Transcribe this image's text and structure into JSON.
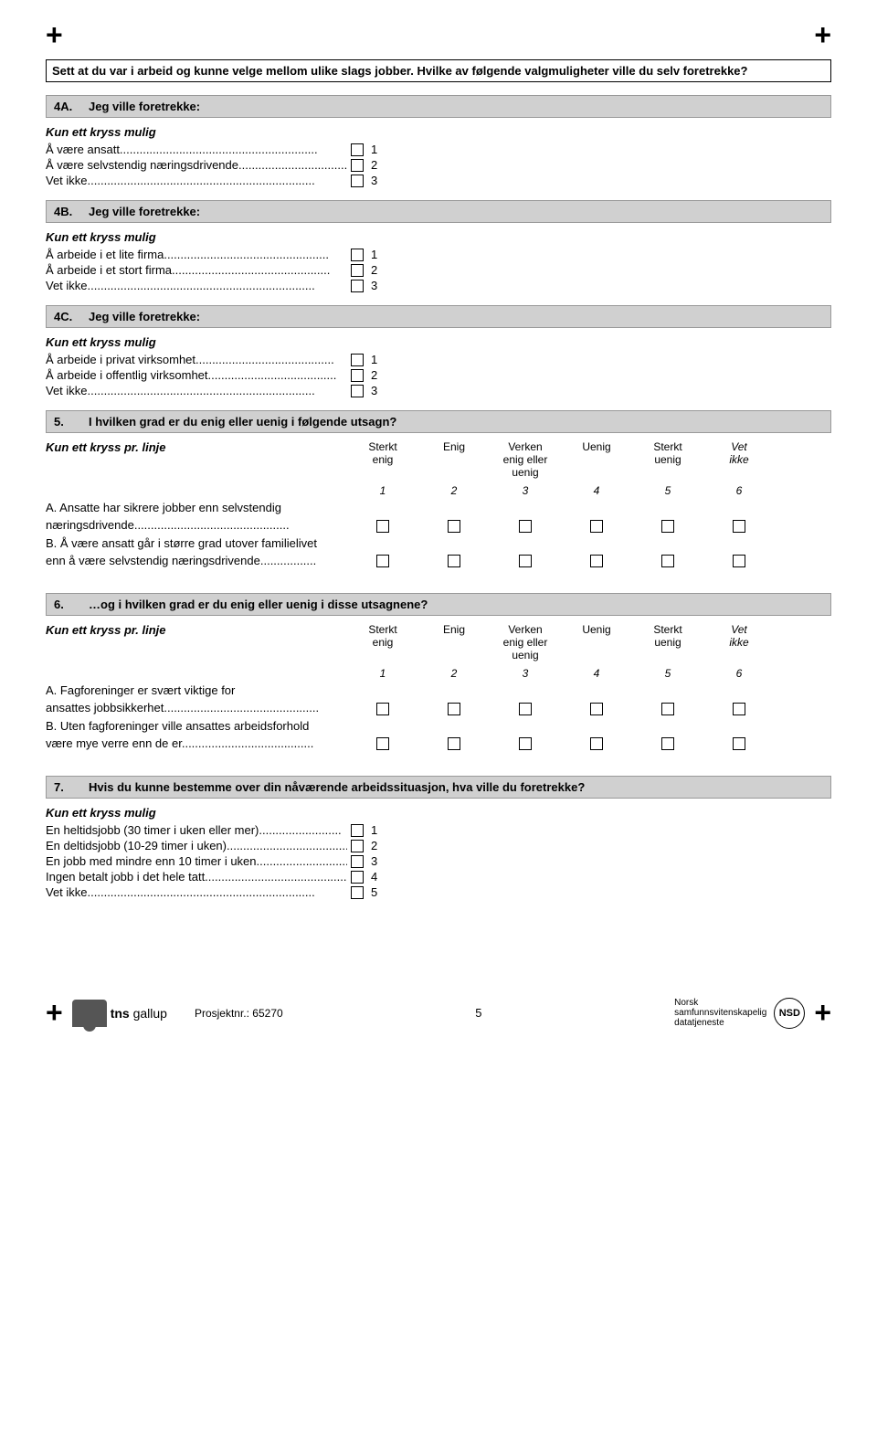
{
  "crosses": {
    "left": "+",
    "right": "+"
  },
  "intro": "Sett at du var i arbeid og kunne velge mellom ulike slags jobber. Hvilke av  følgende valgmuligheter ville du selv foretrekke?",
  "q4a": {
    "num": "4A.",
    "title": "Jeg ville foretrekke:",
    "instruction": "Kun ett kryss mulig",
    "opts": [
      {
        "label": "Å være ansatt",
        "dots": "............................................................",
        "n": "1"
      },
      {
        "label": "Å være selvstendig næringsdrivende",
        "dots": "..................................",
        "n": "2"
      },
      {
        "label": "Vet ikke",
        "dots": ".....................................................................",
        "n": "3"
      }
    ]
  },
  "q4b": {
    "num": "4B.",
    "title": "Jeg ville foretrekke:",
    "instruction": "Kun ett kryss mulig",
    "opts": [
      {
        "label": "Å arbeide i et lite firma",
        "dots": "..................................................",
        "n": "1"
      },
      {
        "label": "Å arbeide i et stort firma",
        "dots": "................................................",
        "n": "2"
      },
      {
        "label": "Vet ikke",
        "dots": ".....................................................................",
        "n": "3"
      }
    ]
  },
  "q4c": {
    "num": "4C.",
    "title": "Jeg ville foretrekke:",
    "instruction": "Kun ett kryss mulig",
    "opts": [
      {
        "label": "Å arbeide i privat virksomhet",
        "dots": "..........................................",
        "n": "1"
      },
      {
        "label": "Å arbeide i offentlig virksomhet",
        "dots": ".......................................",
        "n": "2"
      },
      {
        "label": "Vet ikke",
        "dots": ".....................................................................",
        "n": "3"
      }
    ]
  },
  "q5": {
    "num": "5.",
    "title": "I hvilken grad er du enig eller uenig i følgende utsagn?",
    "instruction": "Kun ett kryss pr. linje",
    "cols": [
      {
        "l1": "Sterkt",
        "l2": "enig"
      },
      {
        "l1": "Enig",
        "l2": ""
      },
      {
        "l1": "Verken",
        "l2": "enig eller",
        "l3": "uenig"
      },
      {
        "l1": "Uenig",
        "l2": ""
      },
      {
        "l1": "Sterkt",
        "l2": "uenig"
      },
      {
        "l1": "Vet",
        "l2": "ikke",
        "italic": true
      }
    ],
    "nums": [
      "1",
      "2",
      "3",
      "4",
      "5",
      "6"
    ],
    "rows": [
      {
        "l1": "A. Ansatte har sikrere jobber enn selvstendig",
        "l2": "    næringsdrivende",
        "dots": "..............................................."
      },
      {
        "l1": "B. Å være ansatt går i større grad utover familielivet",
        "l2": "    enn å være selvstendig næringsdrivende",
        "dots": "................."
      }
    ]
  },
  "q6": {
    "num": "6.",
    "title": "…og i hvilken grad er du enig eller uenig i disse utsagnene?",
    "instruction": "Kun ett kryss pr. linje",
    "rows": [
      {
        "l1": "A. Fagforeninger er svært viktige for",
        "l2": "    ansattes jobbsikkerhet",
        "dots": "..............................................."
      },
      {
        "l1": "B. Uten fagforeninger ville ansattes arbeidsforhold",
        "l2": "    være mye verre enn de er",
        "dots": "........................................"
      }
    ]
  },
  "q7": {
    "num": "7.",
    "title": "Hvis du kunne bestemme over din nåværende arbeidssituasjon, hva ville du foretrekke?",
    "instruction": "Kun ett kryss mulig",
    "opts": [
      {
        "label": "En heltidsjobb (30 timer i uken eller mer)",
        "dots": ".........................",
        "n": "1"
      },
      {
        "label": "En deltidsjobb (10-29 timer i uken)",
        "dots": "........................................",
        "n": "2"
      },
      {
        "label": "En jobb med mindre enn 10 timer i uken",
        "dots": ".................................",
        "n": "3"
      },
      {
        "label": "Ingen betalt jobb i det hele tatt",
        "dots": "...............................................",
        "n": "4"
      },
      {
        "label": "Vet ikke",
        "dots": ".....................................................................",
        "n": "5"
      }
    ]
  },
  "footer": {
    "tns_b": "tns",
    "tns_rest": " gallup",
    "prosj": "Prosjektnr.: 65270",
    "page": "5",
    "nsd_l1": "Norsk",
    "nsd_l2": "samfunnsvitenskapelig",
    "nsd_l3": "datatjeneste",
    "nsd_circle": "NSD"
  }
}
